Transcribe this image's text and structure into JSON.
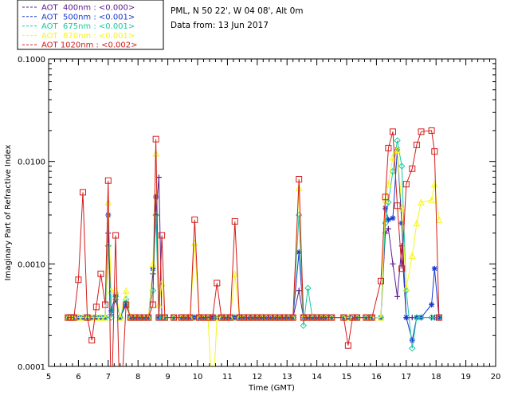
{
  "chart_data": {
    "type": "line",
    "title": "",
    "site_label": "PML, N 50 22', W 04 08', Alt 0m",
    "date_label": "Data from: 13 Jun 2017",
    "xlabel": "Time (GMT)",
    "ylabel": "Imaginary Part of Refractive Index",
    "xlim": [
      5,
      20
    ],
    "ylim": [
      0.0001,
      0.1
    ],
    "yscale": "log",
    "x_ticks": [
      "5",
      "6",
      "7",
      "8",
      "9",
      "10",
      "11",
      "12",
      "13",
      "14",
      "15",
      "16",
      "17",
      "18",
      "19",
      "20"
    ],
    "y_ticks": [
      "0.0001",
      "0.0010",
      "0.0100",
      "0.1000"
    ],
    "legend_position": "top-left",
    "series": [
      {
        "name": "AOT  400nm : <0.000>",
        "color": "#5a1a8c",
        "marker": "plus",
        "x": [
          5.65,
          5.75,
          5.85,
          6.0,
          6.15,
          6.3,
          6.45,
          6.6,
          6.75,
          6.9,
          7.0,
          7.1,
          7.25,
          7.4,
          7.6,
          7.75,
          7.9,
          8.05,
          8.2,
          8.35,
          8.5,
          8.6,
          8.7,
          8.8,
          8.9,
          9.2,
          9.45,
          9.6,
          9.75,
          9.9,
          10.05,
          10.2,
          10.35,
          10.5,
          10.65,
          10.8,
          10.95,
          11.1,
          11.25,
          11.4,
          11.55,
          11.7,
          11.85,
          12.0,
          12.15,
          12.3,
          12.45,
          12.6,
          12.75,
          12.9,
          13.05,
          13.2,
          13.4,
          13.55,
          13.7,
          13.85,
          14.0,
          14.15,
          14.3,
          14.5,
          14.9,
          15.05,
          15.2,
          15.35,
          15.65,
          15.85,
          16.15,
          16.3,
          16.4,
          16.55,
          16.7,
          16.85,
          17.0,
          17.2,
          17.35,
          17.5,
          17.85,
          17.95,
          18.1
        ],
        "y": [
          0.0003,
          0.0003,
          0.0003,
          0.0003,
          0.0003,
          0.0003,
          0.0003,
          0.0003,
          0.0003,
          0.0003,
          0.002,
          0.00032,
          0.00045,
          0.0003,
          0.0004,
          0.0003,
          0.0003,
          0.0003,
          0.0003,
          0.0003,
          0.0008,
          0.003,
          0.007,
          0.0003,
          0.0003,
          0.0003,
          0.0003,
          0.0003,
          0.0003,
          0.0003,
          0.0003,
          0.0003,
          0.0003,
          0.0003,
          0.0003,
          0.0003,
          0.0003,
          0.0003,
          0.0003,
          0.0003,
          0.0003,
          0.0003,
          0.0003,
          0.0003,
          0.0003,
          0.0003,
          0.0003,
          0.0003,
          0.0003,
          0.0003,
          0.0003,
          0.0003,
          0.00055,
          0.0003,
          0.0003,
          0.0003,
          0.0003,
          0.0003,
          0.0003,
          0.0003,
          0.0003,
          0.0003,
          0.0003,
          0.0003,
          0.0003,
          0.0003,
          0.0003,
          0.002,
          0.0022,
          0.001,
          0.00048,
          0.0015,
          0.0003,
          0.0003,
          0.0003,
          0.0003,
          0.0003,
          0.0003,
          0.0003
        ]
      },
      {
        "name": "AOT  500nm : <0.001>",
        "color": "#1a3acf",
        "marker": "asterisk",
        "x": [
          5.65,
          5.75,
          5.85,
          6.0,
          6.15,
          6.3,
          6.45,
          6.6,
          6.75,
          6.9,
          7.0,
          7.1,
          7.25,
          7.4,
          7.6,
          7.75,
          7.9,
          8.05,
          8.2,
          8.35,
          8.5,
          8.6,
          8.7,
          8.8,
          8.9,
          9.2,
          9.45,
          9.6,
          9.75,
          9.9,
          10.05,
          10.2,
          10.35,
          10.5,
          10.65,
          10.8,
          10.95,
          11.1,
          11.25,
          11.4,
          11.55,
          11.7,
          11.85,
          12.0,
          12.15,
          12.3,
          12.45,
          12.6,
          12.75,
          12.9,
          13.05,
          13.2,
          13.4,
          13.55,
          13.7,
          13.85,
          14.0,
          14.15,
          14.3,
          14.5,
          14.9,
          15.05,
          15.2,
          15.35,
          15.65,
          15.85,
          16.15,
          16.3,
          16.4,
          16.55,
          16.7,
          16.85,
          17.0,
          17.2,
          17.35,
          17.5,
          17.85,
          17.95,
          18.1
        ],
        "y": [
          0.0003,
          0.0003,
          0.0003,
          0.0003,
          0.0003,
          0.0003,
          0.0003,
          0.0003,
          0.0003,
          0.0003,
          0.003,
          0.00035,
          0.0005,
          0.0003,
          0.00042,
          0.0003,
          0.0003,
          0.0003,
          0.0003,
          0.0003,
          0.0009,
          0.0045,
          0.0003,
          0.0003,
          0.0003,
          0.0003,
          0.0003,
          0.0003,
          0.0003,
          0.0003,
          0.0003,
          0.0003,
          0.0003,
          0.0003,
          0.0003,
          0.0003,
          0.0003,
          0.0003,
          0.0003,
          0.0003,
          0.0003,
          0.0003,
          0.0003,
          0.0003,
          0.0003,
          0.0003,
          0.0003,
          0.0003,
          0.0003,
          0.0003,
          0.0003,
          0.0003,
          0.0013,
          0.0003,
          0.0003,
          0.0003,
          0.0003,
          0.0003,
          0.0003,
          0.0003,
          0.0003,
          0.0003,
          0.0003,
          0.0003,
          0.0003,
          0.0003,
          0.0003,
          0.0035,
          0.0027,
          0.0028,
          0.013,
          0.0025,
          0.0003,
          0.00018,
          0.0003,
          0.0003,
          0.0004,
          0.0009,
          0.0003
        ]
      },
      {
        "name": "AOT  675nm : <0.001>",
        "color": "#1ac9a0",
        "marker": "diamond",
        "x": [
          5.65,
          5.75,
          5.85,
          6.0,
          6.15,
          6.3,
          6.45,
          6.6,
          6.75,
          6.9,
          7.0,
          7.1,
          7.25,
          7.4,
          7.6,
          7.75,
          7.9,
          8.05,
          8.2,
          8.35,
          8.5,
          8.6,
          8.7,
          8.8,
          8.9,
          9.2,
          9.45,
          9.6,
          9.75,
          9.9,
          10.05,
          10.2,
          10.35,
          10.5,
          10.65,
          10.8,
          10.95,
          11.1,
          11.25,
          11.4,
          11.55,
          11.7,
          11.85,
          12.0,
          12.15,
          12.3,
          12.45,
          12.6,
          12.75,
          12.9,
          13.05,
          13.2,
          13.4,
          13.55,
          13.7,
          13.85,
          14.0,
          14.15,
          14.3,
          14.5,
          14.9,
          15.05,
          15.2,
          15.35,
          15.65,
          15.85,
          16.15,
          16.3,
          16.4,
          16.55,
          16.7,
          16.85,
          17.0,
          17.2,
          17.35,
          17.5,
          17.85,
          17.95,
          18.1
        ],
        "y": [
          0.0003,
          0.0003,
          0.0003,
          0.0003,
          0.0003,
          0.0003,
          0.0003,
          0.0003,
          0.0003,
          0.0003,
          0.0015,
          0.0003,
          0.00048,
          0.0003,
          0.00045,
          0.0003,
          0.0003,
          0.0003,
          0.0003,
          0.0003,
          0.00055,
          0.003,
          0.0003,
          0.0003,
          0.0003,
          0.0003,
          0.0003,
          0.0003,
          0.0003,
          0.0003,
          0.0003,
          0.0003,
          0.0003,
          0.0003,
          0.0003,
          0.0003,
          0.0003,
          0.0003,
          0.0003,
          0.0003,
          0.0003,
          0.0003,
          0.0003,
          0.0003,
          0.0003,
          0.0003,
          0.0003,
          0.0003,
          0.0003,
          0.0003,
          0.0003,
          0.0003,
          0.003,
          0.00025,
          0.00058,
          0.0003,
          0.0003,
          0.0003,
          0.0003,
          0.0003,
          0.0003,
          0.0003,
          0.0003,
          0.0003,
          0.0003,
          0.0003,
          0.0003,
          0.0025,
          0.004,
          0.008,
          0.016,
          0.009,
          0.00055,
          0.00015,
          0.0003,
          0.0003,
          0.0003,
          0.0003,
          0.0003
        ]
      },
      {
        "name": "AOT  870nm : <0.001>",
        "color": "#f5f51a",
        "marker": "triangle",
        "x": [
          5.65,
          5.75,
          5.85,
          6.0,
          6.15,
          6.3,
          6.45,
          6.6,
          6.75,
          6.9,
          7.0,
          7.1,
          7.25,
          7.4,
          7.6,
          7.75,
          7.9,
          8.05,
          8.2,
          8.35,
          8.5,
          8.6,
          8.7,
          8.8,
          8.9,
          9.2,
          9.45,
          9.6,
          9.75,
          9.9,
          10.05,
          10.2,
          10.35,
          10.5,
          10.65,
          10.8,
          10.95,
          11.1,
          11.25,
          11.4,
          11.55,
          11.7,
          11.85,
          12.0,
          12.15,
          12.3,
          12.45,
          12.6,
          12.75,
          12.9,
          13.05,
          13.2,
          13.4,
          13.55,
          13.7,
          13.85,
          14.0,
          14.15,
          14.3,
          14.5,
          14.9,
          15.05,
          15.2,
          15.35,
          15.65,
          15.85,
          16.15,
          16.3,
          16.4,
          16.55,
          16.7,
          16.85,
          17.0,
          17.2,
          17.35,
          17.5,
          17.85,
          17.95,
          18.1
        ],
        "y": [
          0.0003,
          0.0003,
          0.0003,
          0.0003,
          0.0003,
          0.0003,
          0.0003,
          0.0003,
          0.0003,
          0.0003,
          0.004,
          0.00055,
          0.00055,
          0.0003,
          0.00055,
          0.0003,
          0.0003,
          0.0003,
          0.0003,
          0.0003,
          0.001,
          0.012,
          0.0004,
          0.00065,
          0.0003,
          0.0003,
          0.0003,
          0.0003,
          0.0003,
          0.0016,
          0.0003,
          0.0003,
          0.0003,
          4e-05,
          0.0003,
          0.0003,
          0.0003,
          0.0003,
          0.0008,
          0.0003,
          0.0003,
          0.0003,
          0.0003,
          0.0003,
          0.0003,
          0.0003,
          0.0003,
          0.0003,
          0.0003,
          0.0003,
          0.0003,
          0.0003,
          0.0055,
          0.0003,
          0.0003,
          0.0003,
          0.0003,
          0.0003,
          0.0003,
          0.0003,
          0.0003,
          0.0003,
          0.0003,
          0.0003,
          0.0003,
          0.0003,
          0.0003,
          0.0042,
          0.006,
          0.011,
          0.013,
          0.0035,
          0.00058,
          0.0012,
          0.0025,
          0.004,
          0.0042,
          0.006,
          0.0027
        ]
      },
      {
        "name": "AOT 1020nm : <0.002>",
        "color": "#d41a1a",
        "marker": "square",
        "x": [
          5.65,
          5.75,
          5.85,
          6.0,
          6.15,
          6.3,
          6.45,
          6.6,
          6.75,
          6.9,
          7.0,
          7.1,
          7.25,
          7.4,
          7.6,
          7.75,
          7.9,
          8.05,
          8.2,
          8.35,
          8.5,
          8.6,
          8.7,
          8.8,
          8.9,
          9.2,
          9.45,
          9.6,
          9.75,
          9.9,
          10.05,
          10.2,
          10.35,
          10.5,
          10.65,
          10.8,
          10.95,
          11.1,
          11.25,
          11.4,
          11.55,
          11.7,
          11.85,
          12.0,
          12.15,
          12.3,
          12.45,
          12.6,
          12.75,
          12.9,
          13.05,
          13.2,
          13.4,
          13.55,
          13.7,
          13.85,
          14.0,
          14.15,
          14.3,
          14.5,
          14.9,
          15.05,
          15.2,
          15.35,
          15.65,
          15.85,
          16.15,
          16.3,
          16.4,
          16.55,
          16.7,
          16.85,
          17.0,
          17.2,
          17.35,
          17.5,
          17.85,
          17.95,
          18.1
        ],
        "y": [
          0.0003,
          0.0003,
          0.0003,
          0.0007,
          0.005,
          0.0003,
          0.00018,
          0.00038,
          0.0008,
          0.0004,
          0.0065,
          3e-05,
          0.0019,
          3e-05,
          0.0004,
          0.0003,
          0.0003,
          0.0003,
          0.0003,
          0.0003,
          0.0004,
          0.0165,
          0.0003,
          0.0019,
          0.0003,
          0.0003,
          0.0003,
          0.0003,
          0.0003,
          0.0027,
          0.0003,
          0.0003,
          0.0003,
          0.0003,
          0.00065,
          0.0003,
          0.0003,
          0.0003,
          0.0026,
          0.0003,
          0.0003,
          0.0003,
          0.0003,
          0.0003,
          0.0003,
          0.0003,
          0.0003,
          0.0003,
          0.0003,
          0.0003,
          0.0003,
          0.0003,
          0.0067,
          0.0003,
          0.0003,
          0.0003,
          0.0003,
          0.0003,
          0.0003,
          0.0003,
          0.0003,
          0.00016,
          0.0003,
          0.0003,
          0.0003,
          0.0003,
          0.00068,
          0.0045,
          0.0135,
          0.0195,
          0.0037,
          0.0009,
          0.006,
          0.0085,
          0.0145,
          0.0195,
          0.02,
          0.0125,
          0.0003
        ]
      }
    ]
  }
}
